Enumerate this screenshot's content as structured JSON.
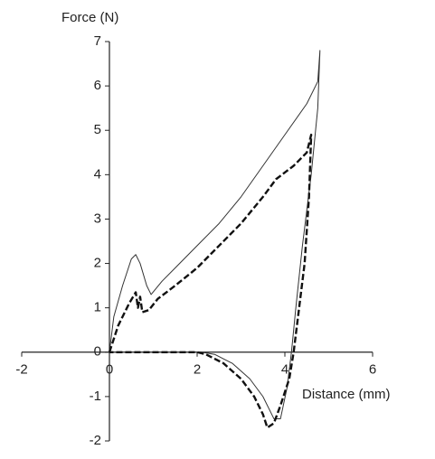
{
  "chart_data": {
    "type": "line",
    "x_label": "Distance (mm)",
    "y_label": "Force (N)",
    "xlim": [
      -2,
      6
    ],
    "ylim": [
      -2,
      7
    ],
    "xticks": [
      -2,
      0,
      2,
      4,
      6
    ],
    "yticks": [
      -2,
      -1,
      0,
      1,
      2,
      3,
      4,
      5,
      6,
      7
    ],
    "series": [
      {
        "color": "#333333",
        "dash": false,
        "x": [
          0,
          0.1,
          0.3,
          0.5,
          0.6,
          0.7,
          0.85,
          0.95,
          1.2,
          1.5,
          2,
          2.5,
          3,
          3.5,
          4,
          4.5,
          4.75,
          4.8,
          4.75,
          4.6,
          4.4,
          4.25,
          4.15,
          4.05,
          3.9,
          3.75,
          3.5,
          3.2,
          2.8,
          2.4,
          2.1,
          1,
          0
        ],
        "values": [
          0,
          0.8,
          1.5,
          2.1,
          2.2,
          2.0,
          1.5,
          1.3,
          1.6,
          1.9,
          2.4,
          2.9,
          3.5,
          4.2,
          4.9,
          5.6,
          6.1,
          6.8,
          5.5,
          4.0,
          2.4,
          1.0,
          0,
          -0.8,
          -1.5,
          -1.5,
          -1.0,
          -0.6,
          -0.25,
          -0.05,
          0,
          0,
          0
        ]
      },
      {
        "color": "#111111",
        "dash": true,
        "x": [
          0,
          0.2,
          0.45,
          0.6,
          0.65,
          0.7,
          0.75,
          0.9,
          1.1,
          1.5,
          2,
          2.5,
          3,
          3.5,
          3.8,
          4.2,
          4.5,
          4.6,
          4.55,
          4.45,
          4.3,
          4.2,
          4.1,
          3.9,
          3.75,
          3.6,
          3.5,
          3.3,
          3.0,
          2.6,
          2.2,
          2,
          0
        ],
        "values": [
          0,
          0.6,
          1.1,
          1.35,
          1.0,
          1.25,
          0.9,
          0.95,
          1.2,
          1.5,
          1.9,
          2.4,
          2.9,
          3.5,
          3.9,
          4.2,
          4.5,
          4.9,
          3.5,
          2.0,
          0.8,
          0,
          -0.6,
          -1.2,
          -1.6,
          -1.7,
          -1.4,
          -1.0,
          -0.6,
          -0.25,
          -0.05,
          0,
          0
        ]
      }
    ]
  }
}
